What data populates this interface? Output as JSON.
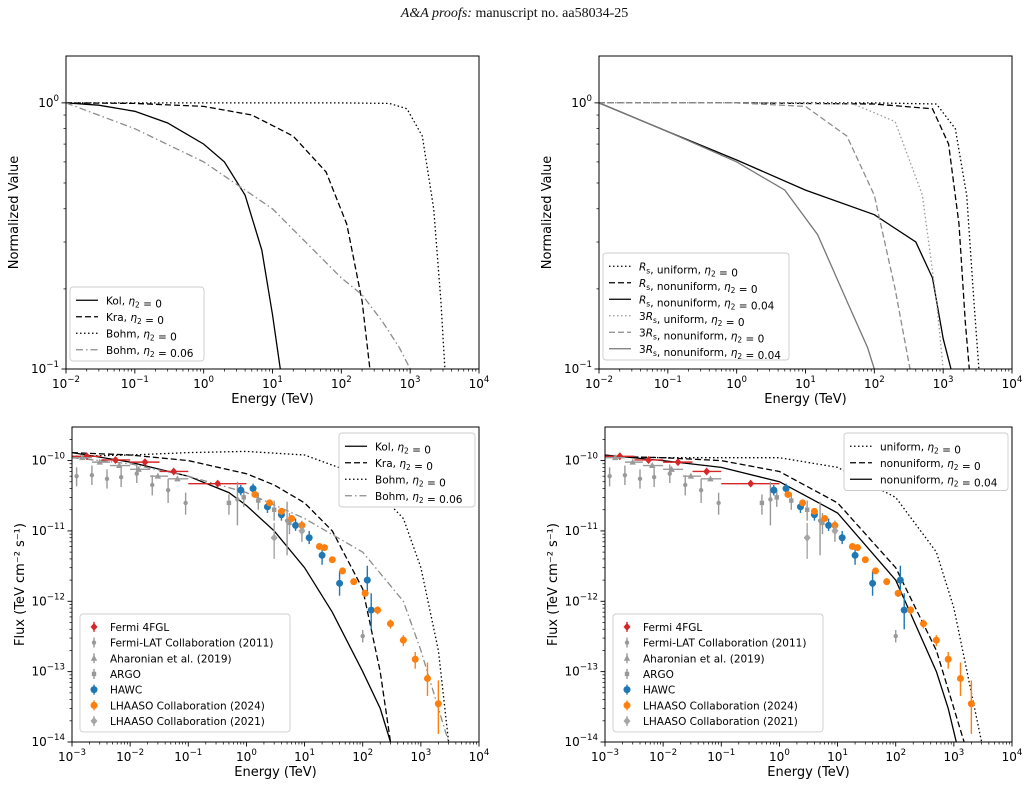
{
  "header": {
    "journal": "A&A proofs:",
    "manuscript": "manuscript no. aa58034-25"
  },
  "chart_data": [
    {
      "type": "line",
      "panel": "top-left",
      "xlabel": "Energy (TeV)",
      "ylabel": "Normalized Value",
      "xscale": "log",
      "yscale": "log",
      "xlim": [
        0.01,
        10000
      ],
      "ylim": [
        0.1,
        1.5
      ],
      "xticks": [
        0.01,
        0.1,
        1,
        10,
        100,
        1000,
        10000
      ],
      "xticklabels": [
        "10^-2",
        "10^-1",
        "10^0",
        "10^1",
        "10^2",
        "10^3",
        "10^4"
      ],
      "yticks": [
        0.1,
        1
      ],
      "yticklabels": [
        "10^-1",
        "10^0"
      ],
      "legend": "lower-left",
      "series": [
        {
          "name": "Kol, η2 = 0",
          "color": "#000000",
          "dash": "solid",
          "x": [
            0.01,
            0.03,
            0.1,
            0.3,
            1,
            2,
            4,
            7,
            10,
            13
          ],
          "y": [
            1,
            0.98,
            0.93,
            0.84,
            0.7,
            0.6,
            0.45,
            0.28,
            0.16,
            0.1
          ]
        },
        {
          "name": "Kra, η2 = 0",
          "color": "#000000",
          "dash": "dashed",
          "x": [
            0.01,
            0.1,
            1,
            5,
            20,
            60,
            120,
            200,
            260
          ],
          "y": [
            1,
            0.995,
            0.97,
            0.9,
            0.75,
            0.55,
            0.35,
            0.18,
            0.1
          ]
        },
        {
          "name": "Bohm, η2 = 0",
          "color": "#000000",
          "dash": "dotted",
          "x": [
            0.01,
            1,
            100,
            500,
            900,
            1500,
            2200,
            2800,
            3200
          ],
          "y": [
            1,
            1,
            1,
            0.995,
            0.95,
            0.75,
            0.4,
            0.18,
            0.1
          ]
        },
        {
          "name": "Bohm, η2 = 0.06",
          "color": "#8c8c8c",
          "dash": "dashdot",
          "x": [
            0.01,
            0.1,
            1,
            10,
            100,
            200,
            400,
            700,
            1000
          ],
          "y": [
            1,
            0.8,
            0.6,
            0.4,
            0.22,
            0.19,
            0.15,
            0.12,
            0.1
          ]
        }
      ]
    },
    {
      "type": "line",
      "panel": "top-right",
      "xlabel": "Energy (TeV)",
      "ylabel": "Normalized Value",
      "xscale": "log",
      "yscale": "log",
      "xlim": [
        0.01,
        10000
      ],
      "ylim": [
        0.1,
        1.5
      ],
      "xticks": [
        0.01,
        0.1,
        1,
        10,
        100,
        1000,
        10000
      ],
      "xticklabels": [
        "10^-2",
        "10^-1",
        "10^0",
        "10^1",
        "10^2",
        "10^3",
        "10^4"
      ],
      "yticks": [
        0.1,
        1
      ],
      "yticklabels": [
        "10^-1",
        "10^0"
      ],
      "legend": "lower-left",
      "series": [
        {
          "name": "Rs, uniform, η2 = 0",
          "color": "#000000",
          "dash": "dotted",
          "x": [
            0.01,
            1,
            100,
            800,
            1500,
            2200,
            2800,
            3300
          ],
          "y": [
            1,
            1,
            1,
            0.99,
            0.8,
            0.45,
            0.18,
            0.1
          ]
        },
        {
          "name": "Rs, nonuniform, η2 = 0",
          "color": "#000000",
          "dash": "dashed",
          "x": [
            0.01,
            1,
            100,
            700,
            1200,
            1700,
            2100,
            2400
          ],
          "y": [
            1,
            1,
            0.99,
            0.95,
            0.7,
            0.35,
            0.15,
            0.1
          ]
        },
        {
          "name": "Rs, nonuniform, η2 = 0.04",
          "color": "#000000",
          "dash": "solid",
          "x": [
            0.01,
            0.1,
            1,
            10,
            100,
            400,
            700,
            1000,
            1300
          ],
          "y": [
            1,
            0.78,
            0.61,
            0.47,
            0.38,
            0.3,
            0.22,
            0.13,
            0.1
          ]
        },
        {
          "name": "3Rs, uniform, η2 = 0",
          "color": "#9a9a9a",
          "dash": "dotted",
          "x": [
            0.01,
            1,
            50,
            200,
            500,
            800,
            1000
          ],
          "y": [
            1,
            1,
            0.99,
            0.85,
            0.45,
            0.18,
            0.1
          ]
        },
        {
          "name": "3Rs, nonuniform, η2 = 0",
          "color": "#8c8c8c",
          "dash": "dashed",
          "x": [
            0.01,
            1,
            10,
            40,
            100,
            200,
            330
          ],
          "y": [
            1,
            1,
            0.97,
            0.75,
            0.45,
            0.2,
            0.1
          ]
        },
        {
          "name": "3Rs, nonuniform, η2 = 0.04",
          "color": "#777777",
          "dash": "solid",
          "x": [
            0.01,
            0.1,
            1,
            5,
            15,
            40,
            80,
            100
          ],
          "y": [
            1,
            0.78,
            0.6,
            0.47,
            0.32,
            0.18,
            0.12,
            0.1
          ]
        }
      ]
    },
    {
      "type": "scatter",
      "panel": "bottom-left",
      "xlabel": "Energy (TeV)",
      "ylabel": "Flux (TeV cm⁻² s⁻¹)",
      "xscale": "log",
      "yscale": "log",
      "xlim": [
        0.001,
        10000
      ],
      "ylim": [
        1e-14,
        3e-10
      ],
      "xticks": [
        0.001,
        0.01,
        0.1,
        1,
        10,
        100,
        1000,
        10000
      ],
      "xticklabels": [
        "10^-3",
        "10^-2",
        "10^-1",
        "10^0",
        "10^1",
        "10^2",
        "10^3",
        "10^4"
      ],
      "yticks": [
        1e-14,
        1e-13,
        1e-12,
        1e-11,
        1e-10
      ],
      "yticklabels": [
        "10^-14",
        "10^-13",
        "10^-12",
        "10^-11",
        "10^-10"
      ],
      "legend_top": "upper-right",
      "legend_bottom": "lower-left",
      "series": [
        {
          "name": "Kol, η2 = 0",
          "color": "#000000",
          "dash": "solid",
          "x": [
            0.001,
            0.01,
            0.1,
            0.5,
            1,
            3,
            10,
            30,
            100,
            200,
            300
          ],
          "y": [
            1.3e-10,
            9.5e-11,
            6e-11,
            3.5e-11,
            2.3e-11,
            1e-11,
            3e-12,
            7e-13,
            1e-13,
            3e-14,
            1e-14
          ]
        },
        {
          "name": "Kra, η2 = 0",
          "color": "#000000",
          "dash": "dashed",
          "x": [
            0.001,
            0.01,
            0.1,
            1,
            3,
            10,
            30,
            100,
            200,
            300
          ],
          "y": [
            1.3e-10,
            1.2e-10,
            1e-10,
            6.5e-11,
            4.5e-11,
            2.5e-11,
            1e-11,
            1.5e-12,
            1e-13,
            1e-14
          ]
        },
        {
          "name": "Bohm, η2 = 0",
          "color": "#000000",
          "dash": "dotted",
          "x": [
            0.001,
            0.01,
            0.1,
            1,
            10,
            100,
            500,
            1000,
            2000,
            3000
          ],
          "y": [
            1.15e-10,
            1.2e-10,
            1.3e-10,
            1.35e-10,
            1.2e-10,
            6e-11,
            1.5e-11,
            3e-12,
            2e-13,
            1e-14
          ]
        },
        {
          "name": "Bohm, η2 = 0.06",
          "color": "#8c8c8c",
          "dash": "dashdot",
          "x": [
            0.001,
            0.01,
            0.1,
            1,
            10,
            100,
            500,
            1000,
            2000,
            3000
          ],
          "y": [
            1.1e-10,
            9e-11,
            6e-11,
            3.5e-11,
            1.5e-11,
            5e-12,
            1e-12,
            2e-13,
            3e-14,
            1e-14
          ]
        }
      ]
    },
    {
      "type": "scatter",
      "panel": "bottom-right",
      "xlabel": "Energy (TeV)",
      "ylabel": "Flux (TeV cm⁻² s⁻¹)",
      "xscale": "log",
      "yscale": "log",
      "xlim": [
        0.001,
        10000
      ],
      "ylim": [
        1e-14,
        3e-10
      ],
      "xticks": [
        0.001,
        0.01,
        0.1,
        1,
        10,
        100,
        1000,
        10000
      ],
      "xticklabels": [
        "10^-3",
        "10^-2",
        "10^-1",
        "10^0",
        "10^1",
        "10^2",
        "10^3",
        "10^4"
      ],
      "yticks": [
        1e-14,
        1e-13,
        1e-12,
        1e-11,
        1e-10
      ],
      "yticklabels": [
        "10^-14",
        "10^-13",
        "10^-12",
        "10^-11",
        "10^-10"
      ],
      "legend_top": "upper-right",
      "legend_bottom": "lower-left",
      "series": [
        {
          "name": "uniform, η2 = 0",
          "color": "#000000",
          "dash": "dotted",
          "x": [
            0.001,
            0.01,
            0.1,
            1,
            10,
            100,
            500,
            1000,
            2000,
            3000
          ],
          "y": [
            1.15e-10,
            1.1e-10,
            1.1e-10,
            1.1e-10,
            8e-11,
            3e-11,
            5e-12,
            8e-13,
            5e-14,
            1e-14
          ]
        },
        {
          "name": "nonuniform, η2 = 0",
          "color": "#000000",
          "dash": "dashed",
          "x": [
            0.001,
            0.01,
            0.1,
            1,
            10,
            100,
            500,
            1000,
            1500
          ],
          "y": [
            1.15e-10,
            1.1e-10,
            1e-10,
            7e-11,
            2.5e-11,
            3e-12,
            2e-13,
            3e-14,
            1e-14
          ]
        },
        {
          "name": "nonuniform, η2 = 0.04",
          "color": "#000000",
          "dash": "solid",
          "x": [
            0.001,
            0.01,
            0.1,
            1,
            10,
            100,
            500,
            800,
            1100
          ],
          "y": [
            1.2e-10,
            1e-10,
            8e-11,
            5e-11,
            1.8e-11,
            2e-12,
            1e-13,
            3e-14,
            1e-14
          ]
        }
      ]
    }
  ],
  "observations": [
    {
      "name": "Fermi 4FGL",
      "color": "#d62728",
      "marker": "diamond",
      "points": [
        {
          "x": 0.0018,
          "y": 1.15e-10,
          "xlo": 0.001,
          "xhi": 0.0032
        },
        {
          "x": 0.0056,
          "y": 1.02e-10,
          "xlo": 0.0032,
          "xhi": 0.01
        },
        {
          "x": 0.018,
          "y": 9.5e-11,
          "xlo": 0.01,
          "xhi": 0.032
        },
        {
          "x": 0.056,
          "y": 7e-11,
          "xlo": 0.032,
          "xhi": 0.1
        },
        {
          "x": 0.32,
          "y": 4.7e-11,
          "xlo": 0.1,
          "xhi": 1
        }
      ]
    },
    {
      "name": "Fermi-LAT Collaboration (2011)",
      "color": "#999999",
      "marker": "circle-small",
      "points": [
        {
          "x": 0.0012,
          "y": 6e-11,
          "ylo": 4.3e-11,
          "yhi": 8e-11
        },
        {
          "x": 0.0022,
          "y": 6.2e-11,
          "ylo": 4.5e-11,
          "yhi": 8.5e-11
        },
        {
          "x": 0.004,
          "y": 5.5e-11,
          "ylo": 4e-11,
          "yhi": 7.5e-11
        },
        {
          "x": 0.007,
          "y": 5.8e-11,
          "ylo": 4.2e-11,
          "yhi": 7.8e-11
        },
        {
          "x": 0.013,
          "y": 6.5e-11,
          "ylo": 4.8e-11,
          "yhi": 8.8e-11
        },
        {
          "x": 0.024,
          "y": 4.5e-11,
          "ylo": 3.2e-11,
          "yhi": 6.2e-11
        },
        {
          "x": 0.045,
          "y": 3.8e-11,
          "ylo": 2.5e-11,
          "yhi": 5.5e-11
        },
        {
          "x": 0.09,
          "y": 2.5e-11,
          "ylo": 1.7e-11,
          "yhi": 3.5e-11
        },
        {
          "x": 0.7,
          "y": 2.8e-11,
          "ylo": 1.2e-11,
          "yhi": 5e-11
        },
        {
          "x": 5,
          "y": 1.4e-11,
          "ylo": 4.5e-12,
          "yhi": 2.6e-11
        },
        {
          "x": 100,
          "y": 3.2e-13,
          "ylo": 2.6e-13,
          "yhi": 3.9e-13
        }
      ]
    },
    {
      "name": "Aharonian et al. (2019)",
      "color": "#9a9a9a",
      "marker": "triangle",
      "points": [
        {
          "x": 0.0015,
          "y": 1.1e-10,
          "xlo": 0.001,
          "xhi": 0.0022
        },
        {
          "x": 0.003,
          "y": 9.5e-11,
          "xlo": 0.0022,
          "xhi": 0.0045
        },
        {
          "x": 0.0065,
          "y": 8.5e-11,
          "xlo": 0.0045,
          "xhi": 0.01
        },
        {
          "x": 0.014,
          "y": 7.5e-11,
          "xlo": 0.01,
          "xhi": 0.022
        },
        {
          "x": 0.03,
          "y": 6e-11,
          "xlo": 0.022,
          "xhi": 0.045
        },
        {
          "x": 0.065,
          "y": 5.5e-11,
          "xlo": 0.045,
          "xhi": 0.1
        }
      ]
    },
    {
      "name": "ARGO",
      "color": "#999999",
      "marker": "square",
      "points": [
        {
          "x": 0.5,
          "y": 2.5e-11,
          "ylo": 1.7e-11,
          "yhi": 3.3e-11
        },
        {
          "x": 0.9,
          "y": 3e-11,
          "ylo": 2.2e-11,
          "yhi": 3.8e-11
        },
        {
          "x": 1.6,
          "y": 2.7e-11,
          "ylo": 2e-11,
          "yhi": 3.5e-11
        },
        {
          "x": 3,
          "y": 2e-11,
          "ylo": 1.4e-11,
          "yhi": 2.7e-11
        },
        {
          "x": 5.5,
          "y": 1.3e-11,
          "ylo": 9e-12,
          "yhi": 1.8e-11
        },
        {
          "x": 9,
          "y": 1e-11,
          "ylo": 7e-12,
          "yhi": 1.4e-11
        }
      ]
    },
    {
      "name": "HAWC",
      "color": "#1f77b4",
      "marker": "circle",
      "points": [
        {
          "x": 0.8,
          "y": 3.8e-11,
          "ylo": 3.2e-11,
          "yhi": 4.5e-11
        },
        {
          "x": 1.3,
          "y": 4e-11,
          "ylo": 3.4e-11,
          "yhi": 4.7e-11
        },
        {
          "x": 2.3,
          "y": 2.2e-11,
          "ylo": 1.8e-11,
          "yhi": 2.7e-11
        },
        {
          "x": 4,
          "y": 1.7e-11,
          "ylo": 1.4e-11,
          "yhi": 2.1e-11
        },
        {
          "x": 7,
          "y": 1.2e-11,
          "ylo": 1e-11,
          "yhi": 1.5e-11
        },
        {
          "x": 12,
          "y": 8e-12,
          "ylo": 6.5e-12,
          "yhi": 1e-11
        },
        {
          "x": 20,
          "y": 4.5e-12,
          "ylo": 3.3e-12,
          "yhi": 6e-12
        },
        {
          "x": 40,
          "y": 1.8e-12,
          "ylo": 1.2e-12,
          "yhi": 2.7e-12
        },
        {
          "x": 120,
          "y": 2e-12,
          "ylo": 1.2e-12,
          "yhi": 3.2e-12
        },
        {
          "x": 140,
          "y": 7.5e-13,
          "ylo": 4e-13,
          "yhi": 1.3e-12
        }
      ]
    },
    {
      "name": "LHAASO Collaboration (2024)",
      "color": "#ff7f0e",
      "marker": "circle",
      "points": [
        {
          "x": 1.4,
          "y": 3.3e-11,
          "ylo": 3e-11,
          "yhi": 3.6e-11
        },
        {
          "x": 2.5,
          "y": 2.5e-11,
          "ylo": 2.3e-11,
          "yhi": 2.7e-11
        },
        {
          "x": 4,
          "y": 1.9e-11,
          "ylo": 1.75e-11,
          "yhi": 2.05e-11
        },
        {
          "x": 6,
          "y": 1.5e-11,
          "ylo": 1.4e-11,
          "yhi": 1.6e-11
        },
        {
          "x": 9,
          "y": 1.2e-11,
          "ylo": 1.1e-11,
          "yhi": 1.3e-11
        },
        {
          "x": 18,
          "y": 6e-12,
          "ylo": 5.5e-12,
          "yhi": 6.5e-12
        },
        {
          "x": 22,
          "y": 5.8e-12,
          "ylo": 5.3e-12,
          "yhi": 6.3e-12
        },
        {
          "x": 30,
          "y": 3.9e-12,
          "ylo": 3.6e-12,
          "yhi": 4.2e-12
        },
        {
          "x": 45,
          "y": 2.7e-12,
          "ylo": 2.45e-12,
          "yhi": 2.95e-12
        },
        {
          "x": 70,
          "y": 1.9e-12,
          "ylo": 1.7e-12,
          "yhi": 2.1e-12
        },
        {
          "x": 110,
          "y": 1.3e-12,
          "ylo": 1.15e-12,
          "yhi": 1.45e-12
        },
        {
          "x": 180,
          "y": 7.5e-13,
          "ylo": 6.5e-13,
          "yhi": 8.5e-13
        },
        {
          "x": 300,
          "y": 4.8e-13,
          "ylo": 4.1e-13,
          "yhi": 5.5e-13
        },
        {
          "x": 500,
          "y": 2.8e-13,
          "ylo": 2.3e-13,
          "yhi": 3.3e-13
        },
        {
          "x": 800,
          "y": 1.5e-13,
          "ylo": 1.1e-13,
          "yhi": 1.9e-13
        },
        {
          "x": 1300,
          "y": 8e-14,
          "ylo": 4.5e-14,
          "yhi": 1.35e-13
        },
        {
          "x": 2000,
          "y": 3.5e-14,
          "ylo": 1.3e-14,
          "yhi": 7.5e-14
        }
      ]
    },
    {
      "name": "LHAASO Collaboration (2021)",
      "color": "#a6a6a6",
      "marker": "diamond",
      "points": [
        {
          "x": 3,
          "y": 8e-12,
          "ylo": 4e-12,
          "yhi": 1.3e-11
        },
        {
          "x": 9,
          "y": 1e-11,
          "ylo": 8e-12,
          "yhi": 1.2e-11
        }
      ]
    }
  ]
}
